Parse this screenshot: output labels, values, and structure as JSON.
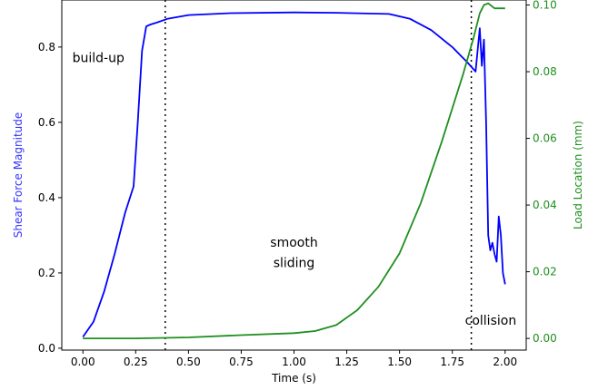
{
  "chart_data": {
    "type": "line",
    "title": "",
    "xlabel": "Time (s)",
    "ylabel_left": "Shear Force Magnitude",
    "ylabel_right": "Load Location (mm)",
    "xlim": [
      -0.1,
      2.1
    ],
    "ylim_left": [
      -0.005,
      0.925
    ],
    "ylim_right": [
      -0.0035,
      0.1015
    ],
    "x_ticks": [
      0.0,
      0.25,
      0.5,
      0.75,
      1.0,
      1.25,
      1.5,
      1.75,
      2.0
    ],
    "x_tick_labels": [
      "0.00",
      "0.25",
      "0.50",
      "0.75",
      "1.00",
      "1.25",
      "1.50",
      "1.75",
      "2.00"
    ],
    "y_left_ticks": [
      0.0,
      0.2,
      0.4,
      0.6,
      0.8
    ],
    "y_left_tick_labels": [
      "0.0",
      "0.2",
      "0.4",
      "0.6",
      "0.8"
    ],
    "y_right_ticks": [
      0.0,
      0.02,
      0.04,
      0.06,
      0.08,
      0.1
    ],
    "y_right_tick_labels": [
      "0.00",
      "0.02",
      "0.04",
      "0.06",
      "0.08",
      "0.10"
    ],
    "grid": false,
    "colors": {
      "shear": "#0000ff",
      "load": "#1f8f1f",
      "left_axis_label": "#3333ff",
      "right_axis_label": "#1f8f1f"
    },
    "series": [
      {
        "key": "shear",
        "axis": "left",
        "x": [
          0.0,
          0.05,
          0.1,
          0.15,
          0.2,
          0.24,
          0.26,
          0.28,
          0.3,
          0.32,
          0.35,
          0.4,
          0.5,
          0.7,
          1.0,
          1.2,
          1.45,
          1.55,
          1.65,
          1.75,
          1.82,
          1.86,
          1.88,
          1.89,
          1.9,
          1.91,
          1.92,
          1.93,
          1.94,
          1.95,
          1.96,
          1.97,
          1.98,
          1.99,
          2.0
        ],
        "y": [
          0.03,
          0.07,
          0.15,
          0.25,
          0.36,
          0.43,
          0.6,
          0.79,
          0.855,
          0.86,
          0.865,
          0.875,
          0.885,
          0.89,
          0.892,
          0.891,
          0.888,
          0.875,
          0.845,
          0.8,
          0.76,
          0.735,
          0.85,
          0.75,
          0.82,
          0.6,
          0.3,
          0.26,
          0.28,
          0.25,
          0.23,
          0.35,
          0.3,
          0.2,
          0.17
        ]
      },
      {
        "key": "load",
        "axis": "right",
        "x": [
          0.0,
          0.25,
          0.5,
          0.75,
          1.0,
          1.1,
          1.2,
          1.3,
          1.4,
          1.5,
          1.6,
          1.7,
          1.8,
          1.85,
          1.88,
          1.9,
          1.92,
          1.95,
          1.97,
          2.0
        ],
        "y": [
          0.0,
          0.0,
          0.0003,
          0.001,
          0.0016,
          0.0022,
          0.004,
          0.0085,
          0.0155,
          0.0255,
          0.0405,
          0.059,
          0.079,
          0.09,
          0.0975,
          0.1,
          0.1005,
          0.099,
          0.099,
          0.099
        ]
      }
    ],
    "vlines": [
      0.39,
      1.84
    ],
    "annotations": [
      {
        "text": "build-up",
        "x": -0.05,
        "y": 0.76,
        "axis": "left"
      },
      {
        "text": "smooth",
        "x": 1.0,
        "y": 0.27,
        "axis": "left"
      },
      {
        "text": "sliding",
        "x": 1.0,
        "y": 0.215,
        "axis": "left"
      },
      {
        "text": "collision",
        "x": 1.81,
        "y": 0.062,
        "axis": "left"
      }
    ]
  }
}
